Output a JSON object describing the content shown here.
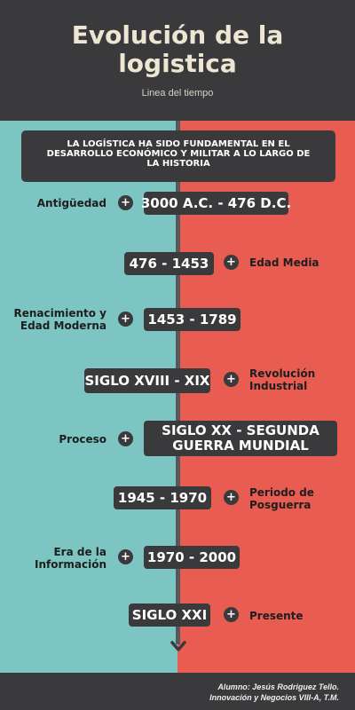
{
  "header": {
    "title_line1": "Evolución de la",
    "title_line2": "logistica",
    "subtitle": "Linea del tiempo"
  },
  "intro": {
    "line1": "LA LOGÍSTICA HA SIDO FUNDAMENTAL EN EL",
    "line2": "DESARROLLO ECONÓMICO Y MILITAR A LO LARGO DE",
    "line3": "LA HISTORIA"
  },
  "timeline": [
    {
      "period": "3000 A.C. - 476 D.C.",
      "label": "Antigüedad",
      "label_l2": "",
      "side": "left"
    },
    {
      "period": "476 - 1453",
      "label": "Edad Media",
      "label_l2": "",
      "side": "right"
    },
    {
      "period": "1453 - 1789",
      "label": "Renacimiento y",
      "label_l2": "Edad Moderna",
      "side": "left"
    },
    {
      "period": "SIGLO XVIII - XIX",
      "label": "Revolución",
      "label_l2": "Industrial",
      "side": "right"
    },
    {
      "period": "SIGLO XX - SEGUNDA",
      "period_l2": "GUERRA MUNDIAL",
      "label": "Proceso",
      "label_l2": "",
      "side": "left"
    },
    {
      "period": "1945 - 1970",
      "label": "Periodo de",
      "label_l2": "Posguerra",
      "side": "right"
    },
    {
      "period": "1970 - 2000",
      "label": "Era de la",
      "label_l2": "Información",
      "side": "left"
    },
    {
      "period": "SIGLO XXI",
      "label": "Presente",
      "label_l2": "",
      "side": "right"
    }
  ],
  "plus_symbol": "+",
  "footer": {
    "line1": "Alumno: Jesús Rodriguez Tello.",
    "line2": "Innovación y Negocios VIII-A, T.M."
  },
  "colors": {
    "dark": "#3a3a3c",
    "teal": "#7dc5c2",
    "coral": "#e95c52",
    "title": "#ece6d2"
  },
  "icons": [
    "plus-icon",
    "chevron-down-icon"
  ]
}
